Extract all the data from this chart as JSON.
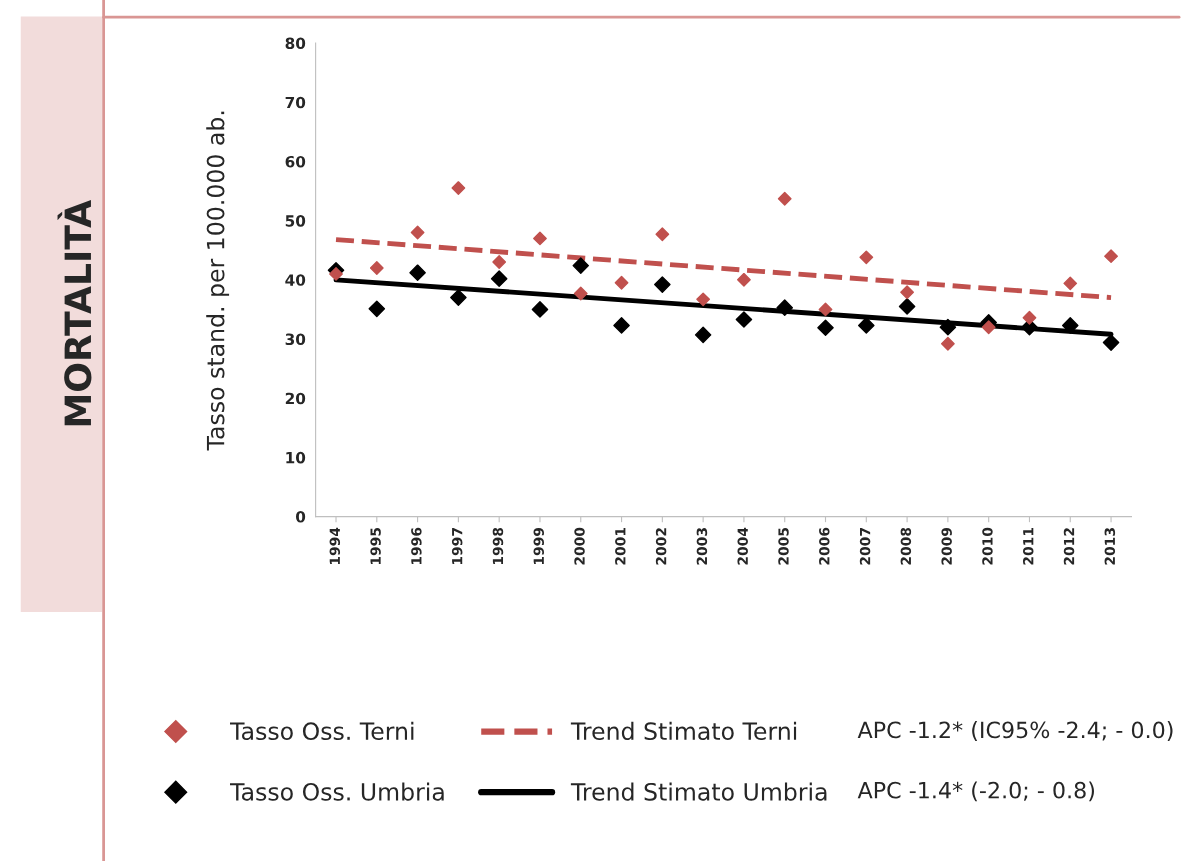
{
  "chart_data": {
    "type": "scatter",
    "title": "MORTALITÀ",
    "ylabel": "Tasso stand. per 100.000 ab.",
    "categories": [
      "1994",
      "1995",
      "1996",
      "1997",
      "1998",
      "1999",
      "2000",
      "2001",
      "2002",
      "2003",
      "2004",
      "2005",
      "2006",
      "2007",
      "2008",
      "2009",
      "2010",
      "2011",
      "2012",
      "2013"
    ],
    "series": [
      {
        "name": "Tasso Oss. Terni",
        "marker": "diamond",
        "color": "#c0504d",
        "values": [
          41,
          42,
          48,
          55.5,
          43,
          47,
          37.7,
          39.5,
          47.7,
          36.7,
          40,
          53.7,
          35,
          43.8,
          37.9,
          29.2,
          32,
          33.6,
          39.4,
          44
        ]
      },
      {
        "name": "Tasso Oss. Umbria",
        "marker": "diamond",
        "color": "#000000",
        "values": [
          41.6,
          35.1,
          41.2,
          37,
          40.2,
          35,
          42.4,
          32.3,
          39.2,
          30.7,
          33.3,
          35.3,
          31.9,
          32.3,
          35.5,
          32,
          32.8,
          32,
          32.3,
          29.4
        ]
      },
      {
        "name": "Trend Stimato Terni",
        "type": "line",
        "line_style": "dashed",
        "color": "#c0504d",
        "values": [
          46.8,
          null,
          null,
          null,
          null,
          null,
          null,
          null,
          null,
          null,
          null,
          null,
          null,
          null,
          null,
          null,
          null,
          null,
          null,
          37
        ]
      },
      {
        "name": "Trend Stimato Umbria",
        "type": "line",
        "line_style": "solid",
        "color": "#000000",
        "values": [
          40,
          null,
          null,
          null,
          null,
          null,
          null,
          null,
          null,
          null,
          null,
          null,
          null,
          null,
          null,
          null,
          null,
          null,
          null,
          30.8
        ]
      }
    ],
    "ylim": [
      0,
      80
    ],
    "yticks": [
      0,
      10,
      20,
      30,
      40,
      50,
      60,
      70,
      80
    ],
    "grid": false,
    "legend": "bottom",
    "annotations": [
      "APC -1.2* (IC95% -2.4; - 0.0)",
      "APC -1.4* (-2.0; - 0.8)"
    ]
  }
}
